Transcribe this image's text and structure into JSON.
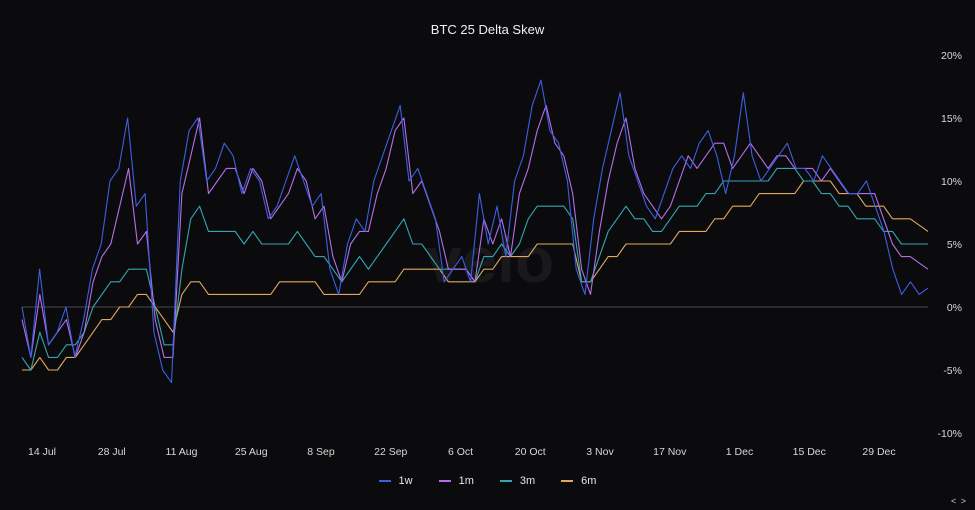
{
  "chart_data": {
    "type": "line",
    "title": "BTC 25 Delta Skew",
    "watermark": "velo",
    "xlabel": "",
    "ylabel": "",
    "x_tick_labels": [
      "14 Jul",
      "28 Jul",
      "11 Aug",
      "25 Aug",
      "8 Sep",
      "22 Sep",
      "6 Oct",
      "20 Oct",
      "3 Nov",
      "17 Nov",
      "1 Dec",
      "15 Dec",
      "29 Dec"
    ],
    "y_tick_labels": [
      "20%",
      "15%",
      "10%",
      "5%",
      "0%",
      "-5%",
      "-10%"
    ],
    "ylim": [
      -10,
      20
    ],
    "zero_line": true,
    "grid": false,
    "legend_position": "bottom-center",
    "x_start": "2025-07-10",
    "x_end": "2026-01-06",
    "series": [
      {
        "name": "1w",
        "color": "#3d5fe0",
        "values": [
          0,
          -4,
          3,
          -3,
          -2,
          0,
          -4,
          -1,
          3,
          5,
          10,
          11,
          15,
          8,
          9,
          -2,
          -5,
          -6,
          10,
          14,
          15,
          10,
          11,
          13,
          12,
          9,
          11,
          10,
          7,
          8,
          10,
          12,
          10,
          8,
          9,
          3,
          1,
          5,
          7,
          6,
          10,
          12,
          14,
          16,
          10,
          11,
          9,
          7,
          2,
          3,
          4,
          2,
          9,
          5,
          8,
          4,
          10,
          12,
          16,
          18,
          14,
          13,
          10,
          3,
          1,
          7,
          11,
          14,
          17,
          12,
          10,
          8,
          7,
          9,
          11,
          12,
          11,
          13,
          14,
          12,
          9,
          12,
          17,
          12,
          10,
          11,
          12,
          13,
          11,
          11,
          10,
          12,
          11,
          10,
          9,
          9,
          10,
          8,
          6,
          3,
          1,
          2,
          1,
          1.5
        ]
      },
      {
        "name": "1m",
        "color": "#b66ee8",
        "values": [
          -1,
          -4,
          1,
          -3,
          -2,
          -1,
          -4,
          -2,
          2,
          4,
          5,
          8,
          11,
          5,
          6,
          -1,
          -4,
          -4,
          9,
          12,
          15,
          9,
          10,
          11,
          11,
          9,
          11,
          10,
          7,
          8,
          9,
          11,
          10,
          7,
          8,
          4,
          2,
          5,
          6,
          6,
          9,
          11,
          14,
          15,
          9,
          10,
          8,
          6,
          3,
          3,
          3,
          2,
          7,
          5,
          7,
          4,
          9,
          11,
          14,
          16,
          13,
          12,
          9,
          3,
          1,
          6,
          10,
          13,
          15,
          11,
          9,
          8,
          7,
          8,
          10,
          12,
          11,
          12,
          13,
          13,
          11,
          12,
          13,
          12,
          11,
          12,
          12,
          11,
          11,
          11,
          10,
          11,
          10,
          9,
          9,
          9,
          9,
          7,
          5,
          4,
          4,
          3.5,
          3
        ]
      },
      {
        "name": "3m",
        "color": "#33a6b2",
        "values": [
          -4,
          -5,
          -2,
          -4,
          -4,
          -3,
          -3,
          -2,
          0,
          1,
          2,
          2,
          3,
          3,
          3,
          0,
          -3,
          -3,
          3,
          7,
          8,
          6,
          6,
          6,
          6,
          5,
          6,
          5,
          5,
          5,
          5,
          6,
          5,
          4,
          4,
          3,
          2,
          3,
          4,
          3,
          4,
          5,
          6,
          7,
          5,
          5,
          4,
          3,
          3,
          3,
          3,
          2,
          4,
          4,
          5,
          4,
          5,
          7,
          8,
          8,
          8,
          8,
          7,
          2,
          2,
          4,
          6,
          7,
          8,
          7,
          7,
          6,
          6,
          7,
          8,
          8,
          8,
          9,
          9,
          10,
          10,
          10,
          10,
          10,
          10,
          11,
          11,
          11,
          10,
          10,
          9,
          9,
          8,
          8,
          7,
          7,
          7,
          6,
          6,
          5,
          5,
          5,
          5
        ]
      },
      {
        "name": "6m",
        "color": "#e0a860",
        "values": [
          -5,
          -5,
          -4,
          -5,
          -5,
          -4,
          -4,
          -3,
          -2,
          -1,
          -1,
          0,
          0,
          1,
          1,
          0,
          -1,
          -2,
          1,
          2,
          2,
          1,
          1,
          1,
          1,
          1,
          1,
          1,
          1,
          2,
          2,
          2,
          2,
          2,
          1,
          1,
          1,
          1,
          1,
          2,
          2,
          2,
          2,
          3,
          3,
          3,
          3,
          3,
          2,
          2,
          2,
          2,
          3,
          3,
          4,
          4,
          4,
          4,
          5,
          5,
          5,
          5,
          5,
          2,
          2,
          3,
          4,
          4,
          5,
          5,
          5,
          5,
          5,
          5,
          6,
          6,
          6,
          6,
          7,
          7,
          8,
          8,
          8,
          9,
          9,
          9,
          9,
          9,
          10,
          10,
          10,
          10,
          9,
          9,
          9,
          8,
          8,
          8,
          7,
          7,
          7,
          6.5,
          6
        ]
      }
    ]
  },
  "legend": {
    "items": [
      {
        "label": "1w",
        "color": "#3d5fe0"
      },
      {
        "label": "1m",
        "color": "#b66ee8"
      },
      {
        "label": "3m",
        "color": "#33a6b2"
      },
      {
        "label": "6m",
        "color": "#e0a860"
      }
    ]
  },
  "nav": {
    "label": "< >"
  }
}
